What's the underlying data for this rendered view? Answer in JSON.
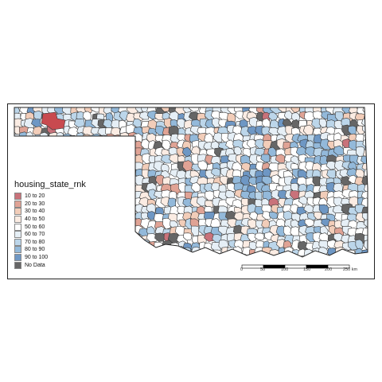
{
  "legend": {
    "title": "housing_state_rnk",
    "items": [
      {
        "label": "10 to 20",
        "color": "#c9727a"
      },
      {
        "label": "20 to 30",
        "color": "#e0a395"
      },
      {
        "label": "30 to 40",
        "color": "#f2cdb9"
      },
      {
        "label": "40 to 50",
        "color": "#fbece3"
      },
      {
        "label": "50 to 60",
        "color": "#ffffff"
      },
      {
        "label": "60 to 70",
        "color": "#e6eff6"
      },
      {
        "label": "70 to 80",
        "color": "#bcd6ea"
      },
      {
        "label": "80 to 90",
        "color": "#93b9da"
      },
      {
        "label": "90 to 100",
        "color": "#6e97c4"
      },
      {
        "label": "No Data",
        "color": "#666666"
      }
    ]
  },
  "scalebar": {
    "ticks": [
      "0",
      "50",
      "100",
      "150",
      "200",
      "250 km"
    ]
  },
  "map": {
    "region": "Oklahoma",
    "highlight_color": "#c84a4f",
    "border_color": "#3a3a3a"
  }
}
